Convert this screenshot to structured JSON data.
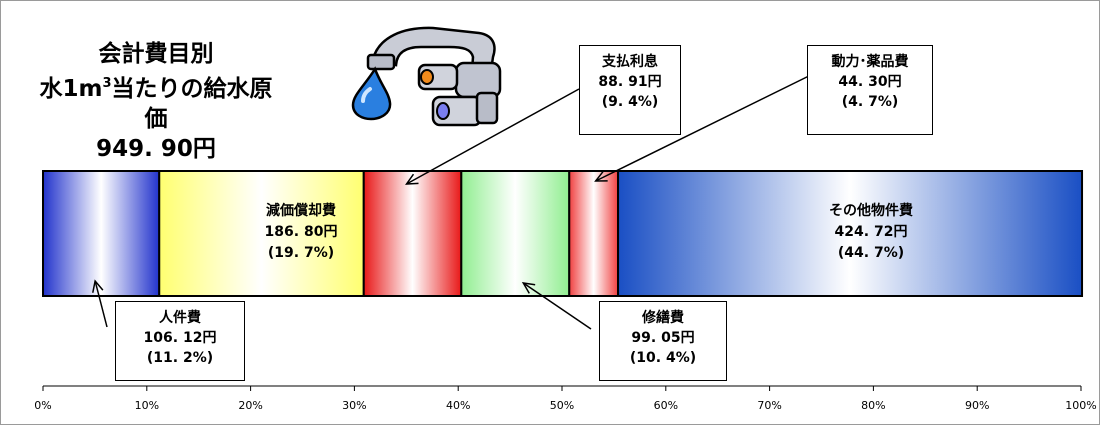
{
  "title": {
    "line1": "会計費目別",
    "line2_pre": "水1m",
    "line2_sup": "3",
    "line2_post": "当たりの給水原価",
    "line3": "949. 90円"
  },
  "chart_data": {
    "type": "bar",
    "orientation": "horizontal-stacked-100",
    "xlim": [
      0,
      100
    ],
    "x_unit": "%",
    "x_ticks": [
      "0%",
      "10%",
      "20%",
      "30%",
      "40%",
      "50%",
      "60%",
      "70%",
      "80%",
      "90%",
      "100%"
    ],
    "grid": false,
    "segments": [
      {
        "name": "人件費",
        "value_text": "106. 12円",
        "percent_text": "(11. 2%)",
        "percent": 11.2,
        "color": "#2233cc",
        "label_position": "callout-below"
      },
      {
        "name": "減価償却費",
        "value_text": "186. 80円",
        "percent_text": "(19. 7%)",
        "percent": 19.7,
        "color": "#ffff70",
        "label_position": "inside"
      },
      {
        "name": "支払利息",
        "value_text": "88. 91円",
        "percent_text": "(9. 4%)",
        "percent": 9.4,
        "color": "#e81818",
        "label_position": "callout-above"
      },
      {
        "name": "修繕費",
        "value_text": "99. 05円",
        "percent_text": "(10. 4%)",
        "percent": 10.4,
        "color": "#90ee90",
        "label_position": "callout-below"
      },
      {
        "name": "動力･薬品費",
        "value_text": "44. 30円",
        "percent_text": "(4. 7%)",
        "percent": 4.7,
        "color": "#f04040",
        "label_position": "callout-above"
      },
      {
        "name": "その他物件費",
        "value_text": "424. 72円",
        "percent_text": "(44. 7%)",
        "percent": 44.7,
        "color": "#1a4fc4",
        "label_position": "inside"
      }
    ]
  },
  "icons": {
    "faucet": "faucet-icon",
    "water_drop": "water-drop-icon"
  }
}
